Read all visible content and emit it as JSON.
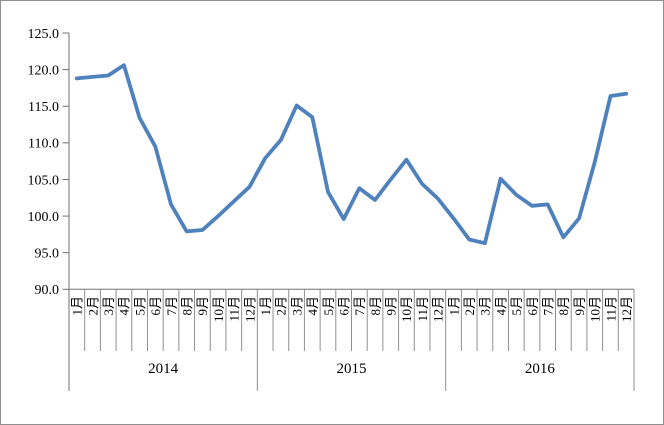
{
  "chart": {
    "background": "#ffffff",
    "border_color": "#8f8f8f",
    "axis_line_color": "#707070",
    "tick_line_color": "#8f8f8f",
    "text_color": "#000000",
    "line_color": "#4F81BD",
    "line_width": 3.8
  },
  "chart_data": {
    "type": "line",
    "title": "",
    "legend": "none",
    "grid": "off",
    "ylim": [
      90,
      125
    ],
    "ytick_step": 5,
    "ytick_labels": [
      "125.0",
      "120.0",
      "115.0",
      "110.0",
      "105.0",
      "100.0",
      "95.0",
      "90.0"
    ],
    "x_month_labels": [
      "1月",
      "2月",
      "3月",
      "4月",
      "5月",
      "6月",
      "7月",
      "8月",
      "9月",
      "10月",
      "11月",
      "12月"
    ],
    "year_groups": [
      "2014",
      "2015",
      "2016"
    ],
    "series": [
      {
        "name": "",
        "values": [
          118.8,
          119.0,
          119.2,
          120.6,
          113.4,
          109.5,
          101.6,
          97.9,
          98.1,
          100.0,
          102.0,
          104.0,
          107.9,
          110.4,
          115.1,
          113.5,
          103.3,
          99.6,
          103.8,
          102.2,
          105.0,
          107.7,
          104.4,
          102.4,
          99.7,
          96.8,
          96.3,
          105.1,
          102.9,
          101.4,
          101.6,
          97.1,
          99.7,
          107.4,
          116.4,
          116.7
        ]
      }
    ]
  }
}
